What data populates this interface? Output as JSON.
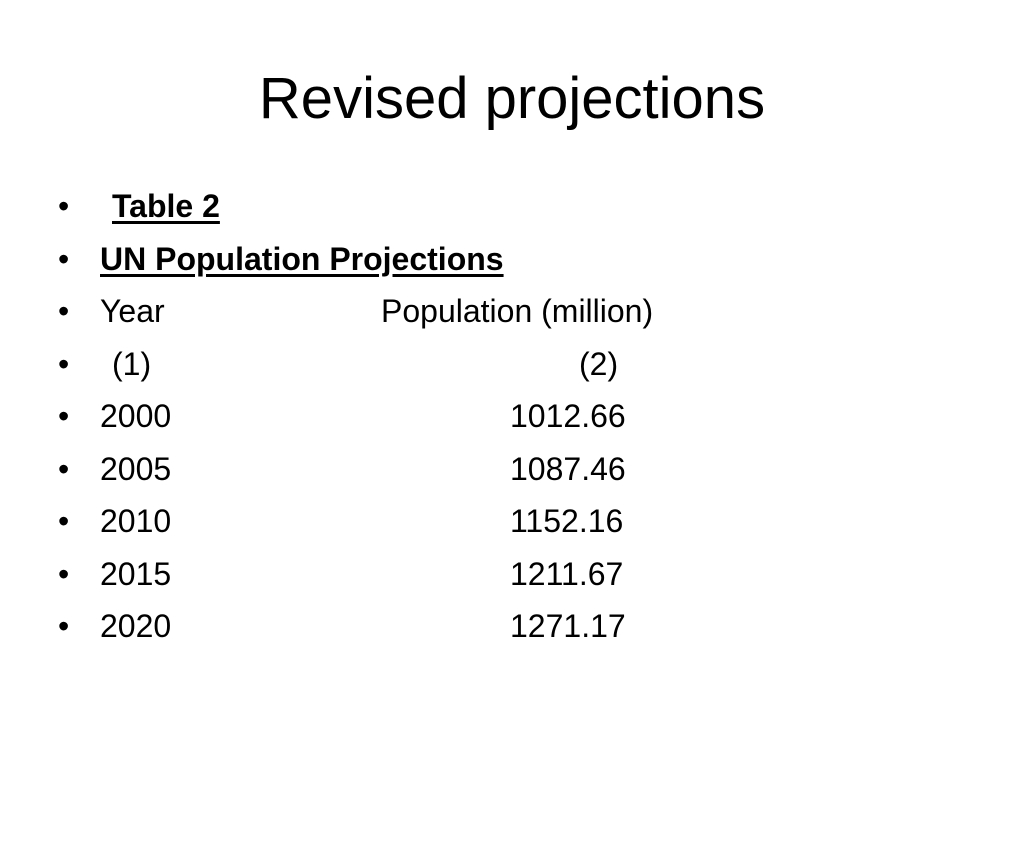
{
  "slide": {
    "title": "Revised projections",
    "bullet_symbol": "•",
    "table_label": "Table 2",
    "table_title": "UN Population Projections",
    "header": {
      "year": "Year",
      "population": "Population (million)"
    },
    "column_numbers": {
      "year": "(1)",
      "population": "(2)"
    },
    "rows": [
      {
        "year": "2000",
        "population": "1012.66"
      },
      {
        "year": "2005",
        "population": "1087.46"
      },
      {
        "year": "2010",
        "population": "1152.16"
      },
      {
        "year": "2015",
        "population": "1211.67"
      },
      {
        "year": "2020",
        "population": "1271.17"
      }
    ]
  }
}
